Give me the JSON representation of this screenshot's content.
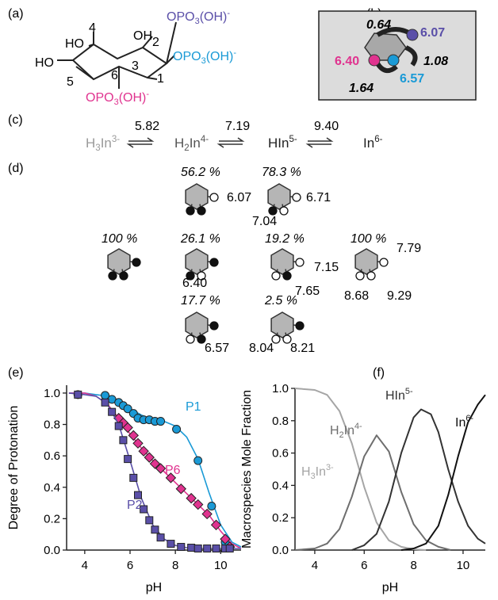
{
  "panel_labels": {
    "a": "(a)",
    "b": "(b)",
    "c": "(c)",
    "d": "(d)",
    "e": "(e)",
    "f": "(f)"
  },
  "structure": {
    "carbons": [
      "1",
      "2",
      "3",
      "4",
      "5",
      "6"
    ],
    "ho_labels": [
      "HO",
      "OH",
      "HO"
    ],
    "substituents": [
      {
        "group": "OPO",
        "sub": "3",
        "rest": "(OH)",
        "charge": "-",
        "color": "#5a4fa8"
      },
      {
        "group": "OPO",
        "sub": "3",
        "rest": "(OH)",
        "charge": "-",
        "color": "#1a9ad6"
      },
      {
        "group": "OPO",
        "sub": "3",
        "rest": "(OH)",
        "charge": "-",
        "color": "#e0338f"
      }
    ]
  },
  "panel_b": {
    "site_pka": [
      {
        "value": "6.07",
        "color": "#5a4fa8"
      },
      {
        "value": "6.40",
        "color": "#e0338f"
      },
      {
        "value": "6.57",
        "color": "#1a9ad6"
      }
    ],
    "interaction": [
      "0.64",
      "1.08",
      "1.64"
    ]
  },
  "panel_c": {
    "species": [
      {
        "base": "H",
        "sub": "3",
        "mid": "In",
        "sup": "3-",
        "color": "#9a9a9a"
      },
      {
        "base": "H",
        "sub": "2",
        "mid": "In",
        "sup": "4-",
        "color": "#555"
      },
      {
        "base": "",
        "sub": "",
        "mid": "HIn",
        "sup": "5-",
        "color": "#222"
      },
      {
        "base": "",
        "sub": "",
        "mid": "In",
        "sup": "6-",
        "color": "#222"
      }
    ],
    "pka": [
      "5.82",
      "7.19",
      "9.40"
    ]
  },
  "panel_d": {
    "percents": [
      "56.2 %",
      "78.3 %",
      "100 %",
      "26.1 %",
      "19.2 %",
      "100 %",
      "17.7 %",
      "2.5 %"
    ],
    "values": [
      "6.07",
      "6.71",
      "7.04",
      "6.40",
      "7.15",
      "7.65",
      "7.79",
      "8.68",
      "9.29",
      "6.57",
      "8.04",
      "8.21"
    ]
  },
  "chart_data": [
    {
      "type": "scatter",
      "xlabel": "pH",
      "ylabel": "Degree of Protonation",
      "xlim": [
        3.2,
        10.9
      ],
      "ylim": [
        0,
        1.05
      ],
      "xticks": [
        4,
        6,
        8,
        10
      ],
      "yticks": [
        0.0,
        0.2,
        0.4,
        0.6,
        0.8,
        1.0
      ],
      "series": [
        {
          "name": "P1",
          "color": "#1a9ad6",
          "marker": "circle",
          "x": [
            3.7,
            4.9,
            5.2,
            5.5,
            5.7,
            5.9,
            6.15,
            6.35,
            6.6,
            6.85,
            7.1,
            7.35,
            8.05,
            9.0,
            9.6,
            10.2,
            10.4
          ],
          "y": [
            0.99,
            0.985,
            0.96,
            0.94,
            0.92,
            0.9,
            0.87,
            0.84,
            0.83,
            0.83,
            0.82,
            0.82,
            0.77,
            0.57,
            0.28,
            0.05,
            0.015
          ],
          "curve_x": [
            3.3,
            4.0,
            4.5,
            5.0,
            5.5,
            6.0,
            6.5,
            7.0,
            7.5,
            8.0,
            8.5,
            9.0,
            9.5,
            10.0,
            10.5,
            10.9
          ],
          "curve_y": [
            1.0,
            1.0,
            0.99,
            0.98,
            0.95,
            0.9,
            0.86,
            0.83,
            0.82,
            0.79,
            0.72,
            0.58,
            0.36,
            0.16,
            0.05,
            0.02
          ]
        },
        {
          "name": "P6",
          "color": "#e0338f",
          "marker": "diamond",
          "x": [
            5.5,
            5.7,
            5.9,
            6.15,
            6.35,
            6.6,
            6.85,
            7.1,
            7.35,
            7.8,
            8.25,
            8.7,
            9.0,
            9.4,
            9.8,
            10.2,
            10.4
          ],
          "y": [
            0.84,
            0.81,
            0.78,
            0.73,
            0.68,
            0.63,
            0.59,
            0.55,
            0.52,
            0.46,
            0.39,
            0.33,
            0.29,
            0.23,
            0.16,
            0.07,
            0.02
          ],
          "curve_x": [
            3.3,
            4.0,
            4.5,
            5.0,
            5.5,
            6.0,
            6.5,
            7.0,
            7.5,
            8.0,
            8.5,
            9.0,
            9.5,
            10.0,
            10.5,
            10.9
          ],
          "curve_y": [
            1.0,
            1.0,
            0.98,
            0.93,
            0.84,
            0.74,
            0.65,
            0.57,
            0.5,
            0.43,
            0.36,
            0.29,
            0.22,
            0.12,
            0.04,
            0.01
          ]
        },
        {
          "name": "P2",
          "color": "#5a4fa8",
          "marker": "square",
          "x": [
            3.7,
            4.9,
            5.2,
            5.5,
            5.7,
            5.9,
            6.15,
            6.35,
            6.6,
            6.85,
            7.1,
            7.35,
            7.8,
            8.25,
            8.7,
            9.0,
            9.4,
            9.8,
            10.2,
            10.4
          ],
          "y": [
            0.99,
            0.94,
            0.88,
            0.79,
            0.7,
            0.58,
            0.46,
            0.35,
            0.26,
            0.19,
            0.13,
            0.08,
            0.04,
            0.02,
            0.015,
            0.01,
            0.01,
            0.01,
            0.01,
            0.01
          ],
          "curve_x": [
            3.3,
            4.0,
            4.5,
            5.0,
            5.5,
            6.0,
            6.5,
            7.0,
            7.5,
            8.0,
            8.5,
            9.0,
            9.5,
            10.0,
            10.5,
            10.9
          ],
          "curve_y": [
            1.0,
            0.99,
            0.98,
            0.93,
            0.8,
            0.57,
            0.33,
            0.16,
            0.07,
            0.03,
            0.015,
            0.01,
            0.01,
            0.01,
            0.01,
            0.01
          ]
        }
      ]
    },
    {
      "type": "line",
      "xlabel": "pH",
      "ylabel": "Macrospecies Mole Fraction",
      "xlim": [
        3.2,
        10.9
      ],
      "ylim": [
        0,
        1.0
      ],
      "xticks": [
        4,
        6,
        8,
        10
      ],
      "yticks": [
        0.0,
        0.2,
        0.4,
        0.6,
        0.8,
        1.0
      ],
      "series": [
        {
          "name": "H3In3-",
          "label": {
            "base": "H",
            "sub": "3",
            "mid": "In",
            "sup": "3-"
          },
          "color": "#a5a5a5",
          "x": [
            3.2,
            4.0,
            4.5,
            5.0,
            5.5,
            6.0,
            6.5,
            7.0,
            7.5,
            8.0,
            8.5
          ],
          "y": [
            1.0,
            0.99,
            0.96,
            0.86,
            0.66,
            0.39,
            0.17,
            0.06,
            0.02,
            0.005,
            0.0
          ]
        },
        {
          "name": "H2In4-",
          "label": {
            "base": "H",
            "sub": "2",
            "mid": "In",
            "sup": "4-"
          },
          "color": "#6e6e6e",
          "x": [
            3.2,
            4.0,
            4.5,
            5.0,
            5.5,
            6.0,
            6.5,
            7.0,
            7.5,
            8.0,
            8.5,
            9.0,
            9.5
          ],
          "y": [
            0.0,
            0.01,
            0.04,
            0.13,
            0.33,
            0.58,
            0.71,
            0.61,
            0.36,
            0.16,
            0.06,
            0.02,
            0.0
          ]
        },
        {
          "name": "HIn5-",
          "label": {
            "base": "",
            "sub": "",
            "mid": "HIn",
            "sup": "5-"
          },
          "color": "#333333",
          "x": [
            5.5,
            6.0,
            6.5,
            7.0,
            7.5,
            8.0,
            8.3,
            8.7,
            9.0,
            9.4,
            9.8,
            10.2,
            10.6,
            10.9
          ],
          "y": [
            0.0,
            0.03,
            0.1,
            0.3,
            0.6,
            0.82,
            0.87,
            0.84,
            0.73,
            0.5,
            0.3,
            0.15,
            0.07,
            0.04
          ]
        },
        {
          "name": "In6-",
          "label": {
            "base": "",
            "sub": "",
            "mid": "In",
            "sup": "6-"
          },
          "color": "#111111",
          "x": [
            7.5,
            8.0,
            8.5,
            9.0,
            9.4,
            9.8,
            10.2,
            10.6,
            10.9
          ],
          "y": [
            0.0,
            0.01,
            0.04,
            0.15,
            0.34,
            0.58,
            0.79,
            0.9,
            0.96
          ]
        }
      ]
    }
  ]
}
